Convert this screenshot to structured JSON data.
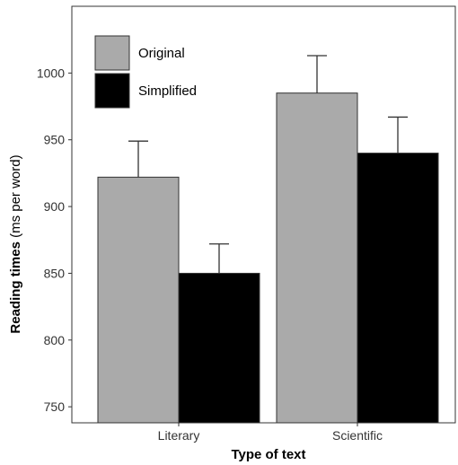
{
  "chart_data": {
    "type": "bar",
    "categories": [
      "Literary",
      "Scientific"
    ],
    "series": [
      {
        "name": "Original",
        "values": [
          922,
          985
        ],
        "errors": [
          27,
          28
        ],
        "color": "#aaaaaa"
      },
      {
        "name": "Simplified",
        "values": [
          850,
          940
        ],
        "errors": [
          22,
          27
        ],
        "color": "#000000"
      }
    ],
    "xlabel": "Type of text",
    "ylabel_main": "Reading times",
    "ylabel_unit": "(ms per word)",
    "ylim": [
      738,
      1050
    ],
    "yticks": [
      750,
      800,
      850,
      900,
      950,
      1000
    ],
    "grid": false,
    "legend_position": "top-left"
  }
}
